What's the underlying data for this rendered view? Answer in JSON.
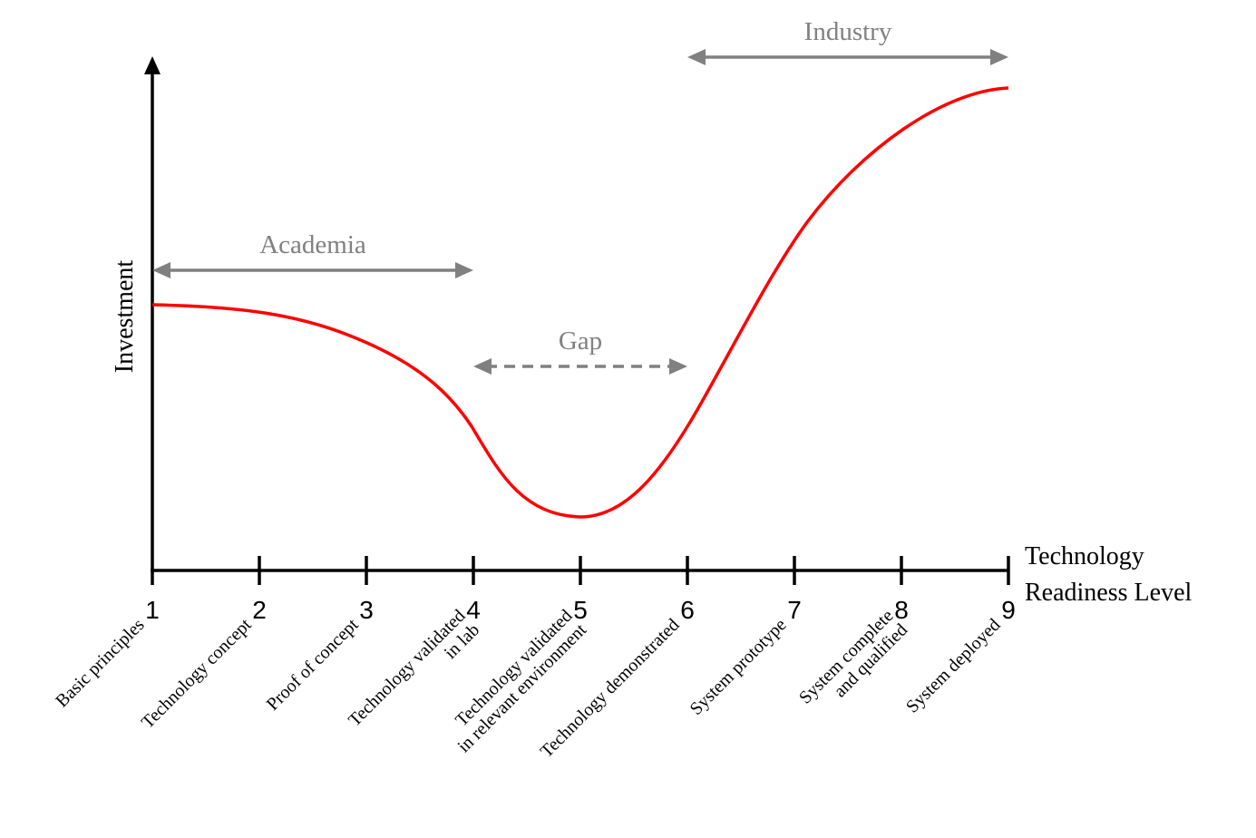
{
  "y_axis": {
    "label": "Investment"
  },
  "x_axis": {
    "label_lines": [
      "Technology",
      "Readiness Level"
    ],
    "ticks": [
      "1",
      "2",
      "3",
      "4",
      "5",
      "6",
      "7",
      "8",
      "9"
    ],
    "level_descriptions": [
      [
        "Basic principles"
      ],
      [
        "Technology concept"
      ],
      [
        "Proof of concept"
      ],
      [
        "Technology validated",
        "in lab"
      ],
      [
        "Technology validated",
        "in relevant environment"
      ],
      [
        "Technology demonstrated"
      ],
      [
        "System prototype"
      ],
      [
        "System complete",
        "and qualified"
      ],
      [
        "System deployed"
      ]
    ]
  },
  "ranges": [
    {
      "label": "Academia",
      "from": 1,
      "to": 4,
      "style": "solid"
    },
    {
      "label": "Gap",
      "from": 4,
      "to": 6,
      "style": "dashed"
    },
    {
      "label": "Industry",
      "from": 6,
      "to": 9,
      "style": "solid"
    }
  ],
  "colors": {
    "curve": "#ff0000",
    "range_arrows": "#808080",
    "axes": "#000000"
  }
}
